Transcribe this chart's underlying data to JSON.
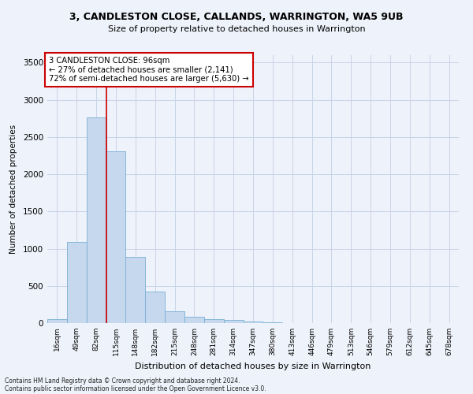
{
  "title": "3, CANDLESTON CLOSE, CALLANDS, WARRINGTON, WA5 9UB",
  "subtitle": "Size of property relative to detached houses in Warrington",
  "xlabel": "Distribution of detached houses by size in Warrington",
  "ylabel": "Number of detached properties",
  "bar_color": "#c5d8ed",
  "bar_edge_color": "#7aafd4",
  "categories": [
    "16sqm",
    "49sqm",
    "82sqm",
    "115sqm",
    "148sqm",
    "182sqm",
    "215sqm",
    "248sqm",
    "281sqm",
    "314sqm",
    "347sqm",
    "380sqm",
    "413sqm",
    "446sqm",
    "479sqm",
    "513sqm",
    "546sqm",
    "579sqm",
    "612sqm",
    "645sqm",
    "678sqm"
  ],
  "values": [
    50,
    1090,
    2760,
    2310,
    890,
    420,
    160,
    85,
    55,
    40,
    18,
    8,
    5,
    0,
    0,
    0,
    0,
    0,
    0,
    0,
    0
  ],
  "ylim": [
    0,
    3600
  ],
  "yticks": [
    0,
    500,
    1000,
    1500,
    2000,
    2500,
    3000,
    3500
  ],
  "annotation_text": "3 CANDLESTON CLOSE: 96sqm\n← 27% of detached houses are smaller (2,141)\n72% of semi-detached houses are larger (5,630) →",
  "annotation_box_color": "white",
  "annotation_box_edge_color": "#cc0000",
  "vline_color": "#cc0000",
  "vline_x_index": 2,
  "footer_line1": "Contains HM Land Registry data © Crown copyright and database right 2024.",
  "footer_line2": "Contains public sector information licensed under the Open Government Licence v3.0.",
  "bg_color": "#eef2fa",
  "grid_color": "#c8d4e8"
}
